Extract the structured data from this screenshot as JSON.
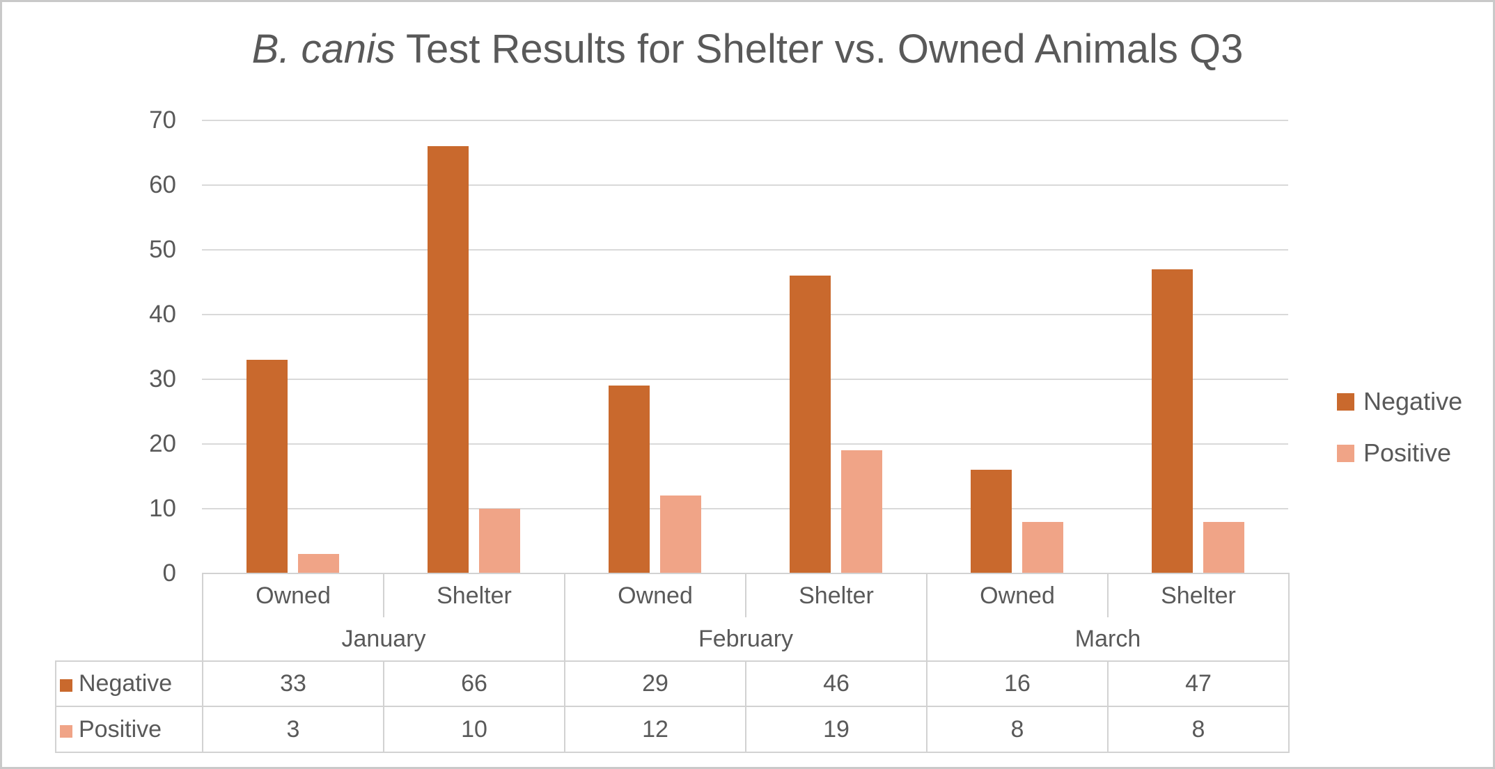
{
  "header": {
    "title_italic": "B. canis",
    "title_rest": " Test Results for Shelter vs. Owned Animals Q3"
  },
  "colors": {
    "negative": "#C9692D",
    "positive": "#F0A487",
    "text": "#595959",
    "gridline": "#D9D9D9",
    "table_border": "#D2D2D2",
    "frame_border": "#C9C9C9",
    "background": "#FFFFFF"
  },
  "chart_data": {
    "type": "bar",
    "title": "B. canis Test Results for Shelter vs. Owned Animals Q3",
    "ylabel": "",
    "xlabel": "",
    "ylim": [
      0,
      70
    ],
    "y_ticks": [
      70,
      60,
      50,
      40,
      30,
      20,
      10,
      0
    ],
    "grid": true,
    "legend_position": "right",
    "has_data_table": true,
    "group_labels": [
      "January",
      "February",
      "March"
    ],
    "categories": [
      "Owned",
      "Shelter",
      "Owned",
      "Shelter",
      "Owned",
      "Shelter"
    ],
    "series": [
      {
        "name": "Negative",
        "color": "#C9692D",
        "values": [
          33,
          66,
          29,
          46,
          16,
          47
        ]
      },
      {
        "name": "Positive",
        "color": "#F0A487",
        "values": [
          3,
          10,
          12,
          19,
          8,
          8
        ]
      }
    ]
  }
}
